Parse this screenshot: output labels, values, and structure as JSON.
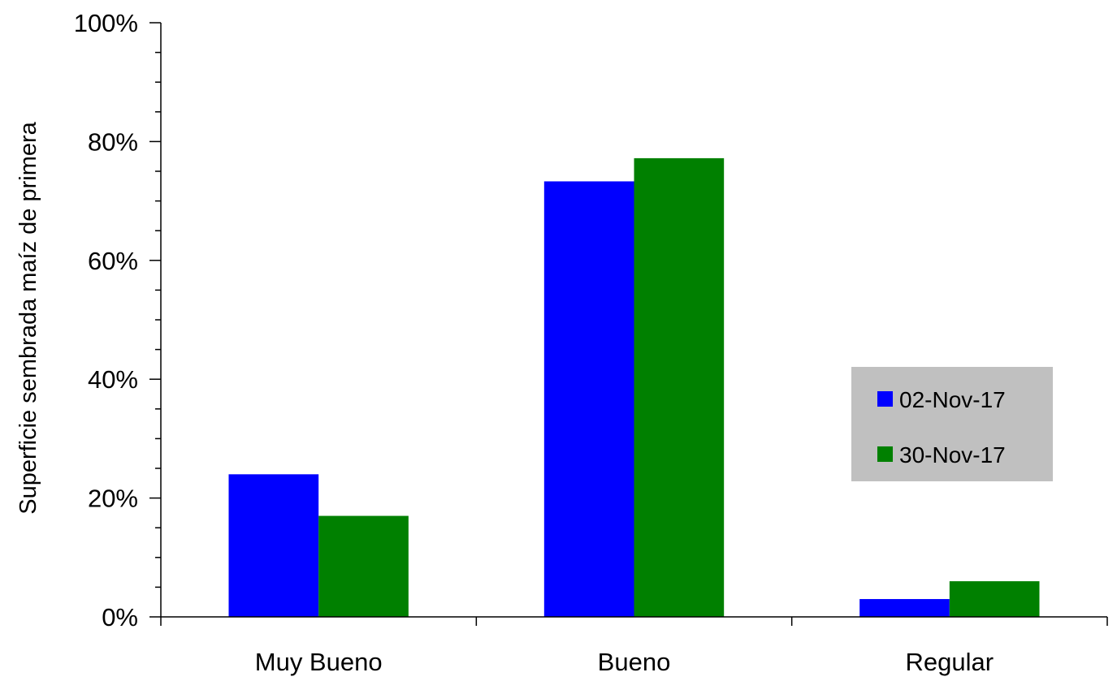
{
  "chart_data": {
    "type": "bar",
    "title": "",
    "xlabel": "",
    "ylabel": "Superficie sembrada maíz de primera",
    "categories": [
      "Muy Bueno",
      "Bueno",
      "Regular"
    ],
    "series": [
      {
        "name": "02-Nov-17",
        "color": "#0000FF",
        "values": [
          24,
          73.3,
          3
        ]
      },
      {
        "name": "30-Nov-17",
        "color": "#008000",
        "values": [
          17,
          77.2,
          6
        ]
      }
    ],
    "ylim": [
      0,
      100
    ],
    "yticks": [
      "0%",
      "20%",
      "40%",
      "60%",
      "80%",
      "100%"
    ],
    "grid": false,
    "legend_position": "right",
    "legend_background": "#C0C0C0"
  }
}
